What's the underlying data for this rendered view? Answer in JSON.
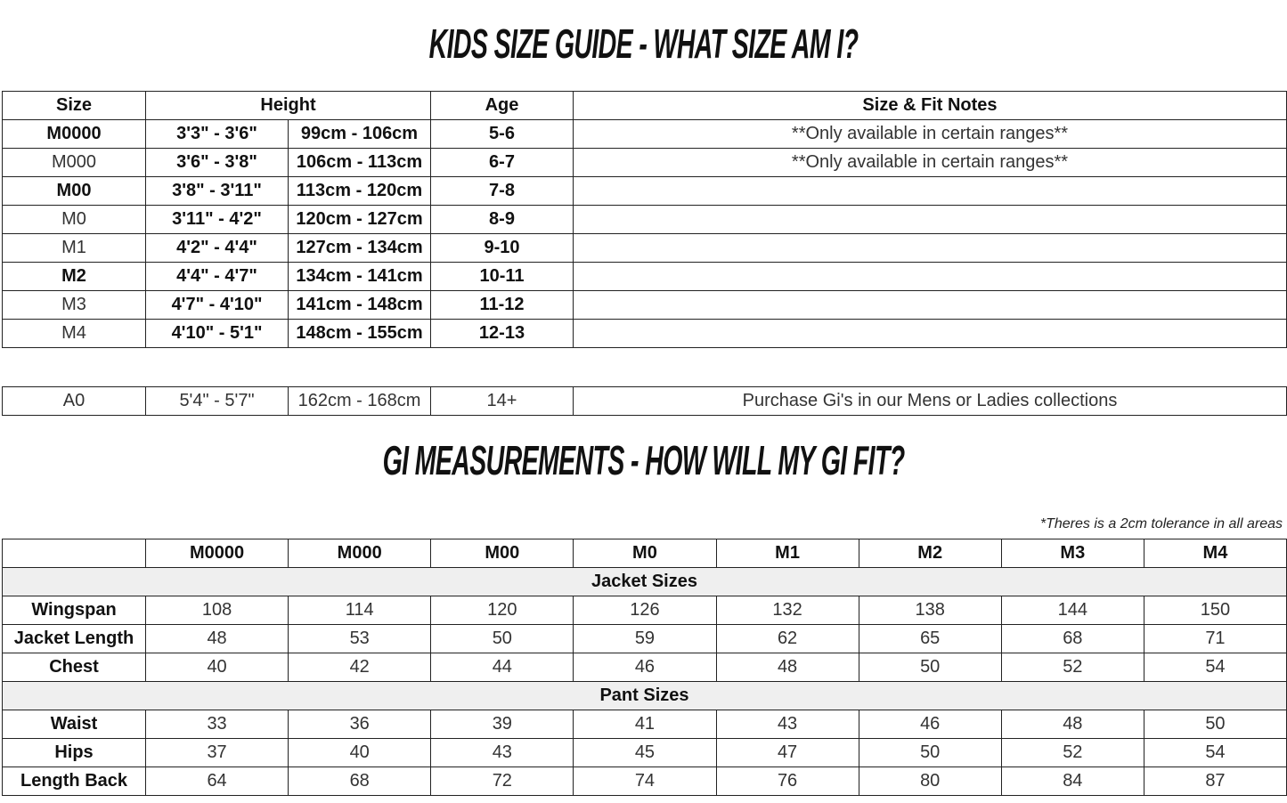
{
  "title1": "KIDS SIZE GUIDE - WHAT SIZE AM I?",
  "size_table": {
    "headers": [
      "Size",
      "Height",
      "Age",
      "Size & Fit Notes"
    ],
    "rows": [
      {
        "size": "M0000",
        "bold_size": true,
        "ft": "3'3\" - 3'6\"",
        "cm": "99cm - 106cm",
        "age": "5-6",
        "note": "**Only available in certain ranges**"
      },
      {
        "size": "M000",
        "bold_size": false,
        "ft": "3'6\" - 3'8\"",
        "cm": "106cm - 113cm",
        "age": "6-7",
        "note": "**Only available in certain ranges**"
      },
      {
        "size": "M00",
        "bold_size": true,
        "ft": "3'8\" - 3'11\"",
        "cm": "113cm - 120cm",
        "age": "7-8",
        "note": ""
      },
      {
        "size": "M0",
        "bold_size": false,
        "ft": "3'11\" - 4'2\"",
        "cm": "120cm - 127cm",
        "age": "8-9",
        "note": ""
      },
      {
        "size": "M1",
        "bold_size": false,
        "ft": "4'2\" - 4'4\"",
        "cm": "127cm - 134cm",
        "age": "9-10",
        "note": ""
      },
      {
        "size": "M2",
        "bold_size": true,
        "ft": "4'4\" - 4'7\"",
        "cm": "134cm - 141cm",
        "age": "10-11",
        "note": ""
      },
      {
        "size": "M3",
        "bold_size": false,
        "ft": "4'7\" - 4'10\"",
        "cm": "141cm - 148cm",
        "age": "11-12",
        "note": ""
      },
      {
        "size": "M4",
        "bold_size": false,
        "ft": "4'10\" - 5'1\"",
        "cm": "148cm - 155cm",
        "age": "12-13",
        "note": ""
      }
    ],
    "adult_row": {
      "size": "A0",
      "ft": "5'4\" - 5'7\"",
      "cm": "162cm - 168cm",
      "age": "14+",
      "note": "Purchase Gi's in our Mens or Ladies collections"
    }
  },
  "title2": "GI MEASUREMENTS - HOW WILL MY GI FIT?",
  "tolerance_note": "*Theres is a 2cm tolerance in all areas",
  "gi_table": {
    "columns": [
      "M0000",
      "M000",
      "M00",
      "M0",
      "M1",
      "M2",
      "M3",
      "M4"
    ],
    "sections": [
      {
        "label": "Jacket Sizes",
        "rows": [
          {
            "label": "Wingspan",
            "values": [
              "108",
              "114",
              "120",
              "126",
              "132",
              "138",
              "144",
              "150"
            ]
          },
          {
            "label": "Jacket Length",
            "values": [
              "48",
              "53",
              "50",
              "59",
              "62",
              "65",
              "68",
              "71"
            ]
          },
          {
            "label": "Chest",
            "values": [
              "40",
              "42",
              "44",
              "46",
              "48",
              "50",
              "52",
              "54"
            ]
          }
        ]
      },
      {
        "label": "Pant Sizes",
        "rows": [
          {
            "label": "Waist",
            "values": [
              "33",
              "36",
              "39",
              "41",
              "43",
              "46",
              "48",
              "50"
            ]
          },
          {
            "label": "Hips",
            "values": [
              "37",
              "40",
              "43",
              "45",
              "47",
              "50",
              "52",
              "54"
            ]
          },
          {
            "label": "Length Back",
            "values": [
              "64",
              "68",
              "72",
              "74",
              "76",
              "80",
              "84",
              "87"
            ]
          }
        ]
      }
    ]
  }
}
